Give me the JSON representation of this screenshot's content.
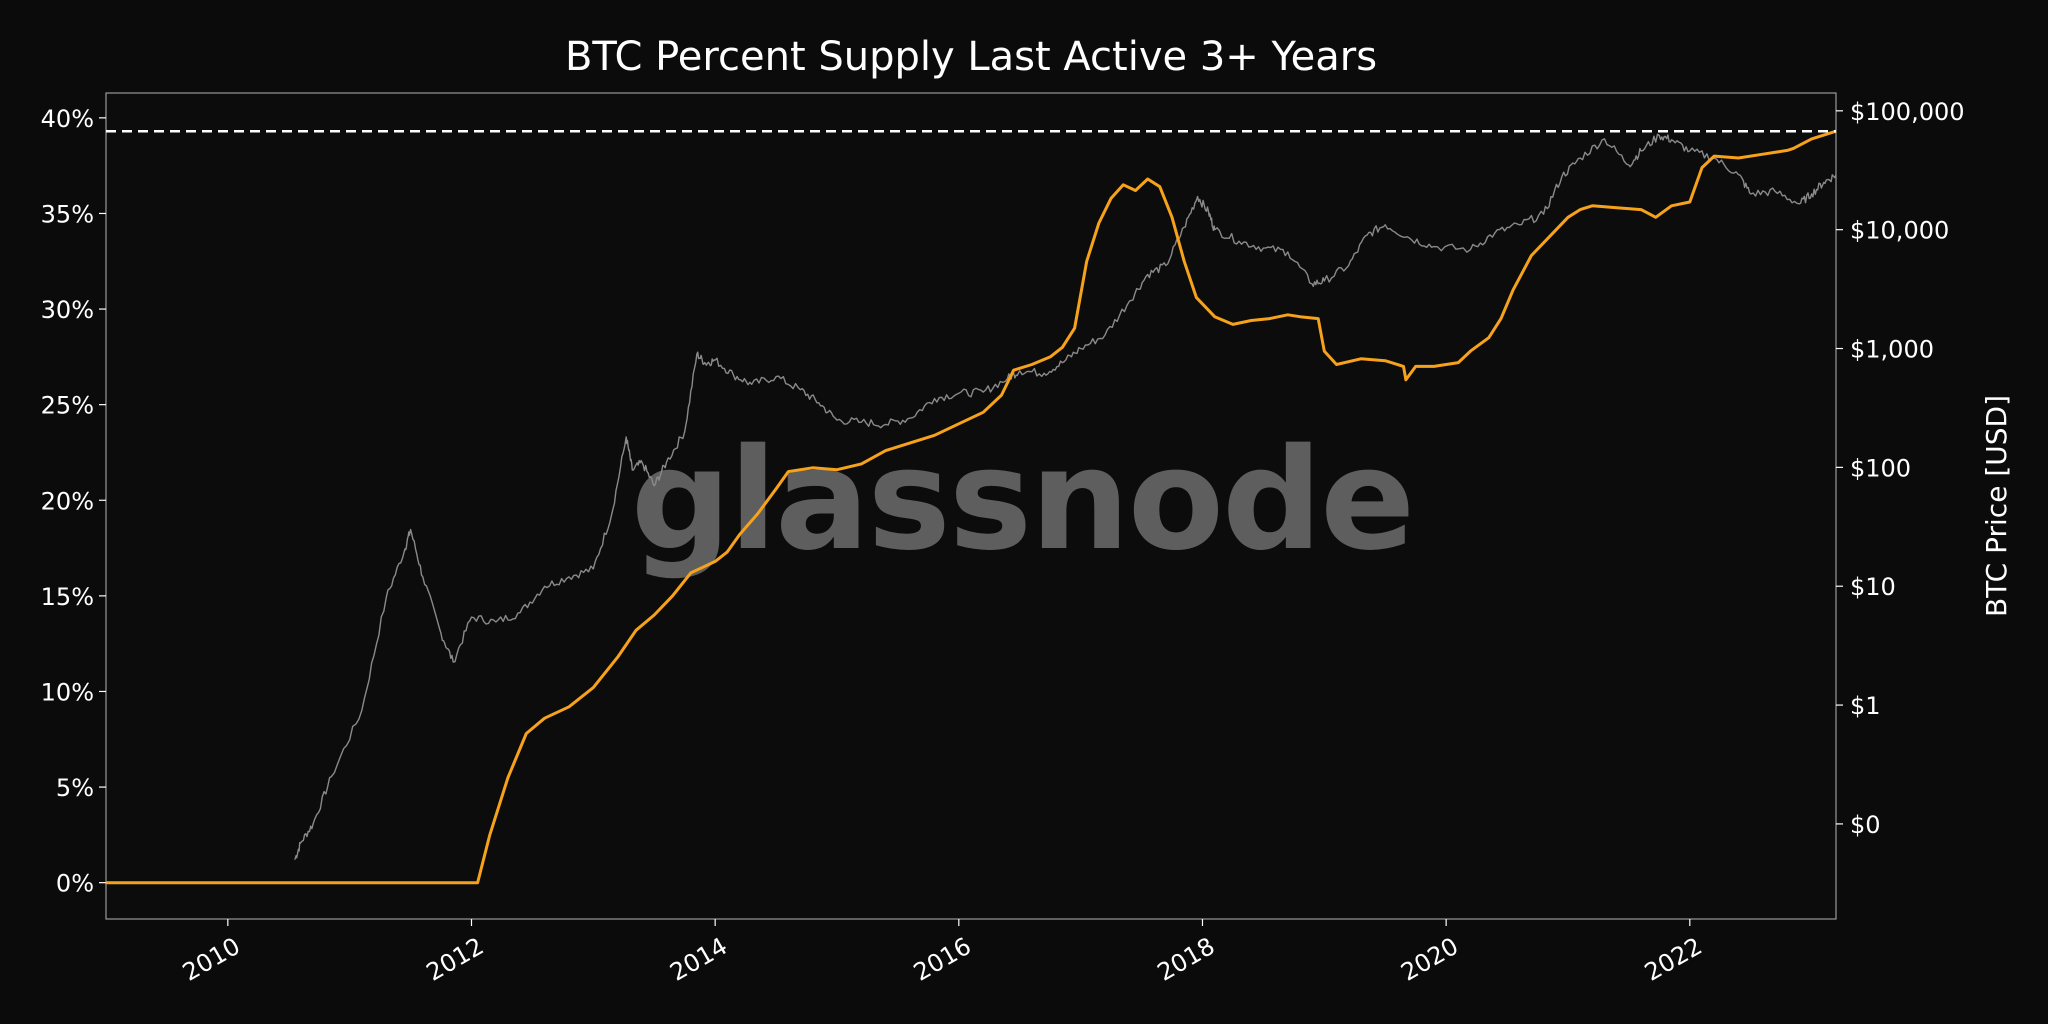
{
  "chart_data": {
    "type": "line",
    "title": "BTC Percent Supply Last Active 3+ Years",
    "xlabel": "",
    "ylabel_left": "",
    "ylabel_right": "BTC Price [USD]",
    "xlim": [
      2009.0,
      2023.2
    ],
    "ylim_left": [
      -1.9,
      41.3
    ],
    "ylim_right_log10": [
      -1.8,
      5.15
    ],
    "x_ticks": [
      2010,
      2012,
      2014,
      2016,
      2018,
      2020,
      2022
    ],
    "x_tick_labels": [
      "2010",
      "2012",
      "2014",
      "2016",
      "2018",
      "2020",
      "2022"
    ],
    "y_left_ticks": [
      0,
      5,
      10,
      15,
      20,
      25,
      30,
      35,
      40
    ],
    "y_left_tick_labels": [
      "0%",
      "5%",
      "10%",
      "15%",
      "20%",
      "25%",
      "30%",
      "35%",
      "40%"
    ],
    "y_right_ticks_log10": [
      -1,
      0,
      1,
      2,
      3,
      4,
      5
    ],
    "y_right_tick_labels": [
      "$0",
      "$1",
      "$10",
      "$100",
      "$1,000",
      "$10,000",
      "$100,000"
    ],
    "ath_line_value": 39.3,
    "watermark": "glassnode",
    "colors": {
      "background": "#0b0b0b",
      "supply": "#f7a21b",
      "price": "#8a8a8a",
      "ath": "#ffffff",
      "watermark": "#5e5e5e",
      "frame": "#9a9a9a"
    },
    "series": [
      {
        "name": "Percent Supply Last Active 3+ Years",
        "axis": "left",
        "x": [
          2009.0,
          2012.0,
          2012.05,
          2012.15,
          2012.3,
          2012.45,
          2012.6,
          2012.8,
          2013.0,
          2013.2,
          2013.35,
          2013.5,
          2013.65,
          2013.8,
          2013.9,
          2014.0,
          2014.1,
          2014.2,
          2014.35,
          2014.5,
          2014.6,
          2014.8,
          2015.0,
          2015.2,
          2015.4,
          2015.6,
          2015.8,
          2016.0,
          2016.2,
          2016.35,
          2016.45,
          2016.6,
          2016.75,
          2016.85,
          2016.95,
          2017.05,
          2017.15,
          2017.25,
          2017.35,
          2017.45,
          2017.55,
          2017.65,
          2017.75,
          2017.85,
          2017.95,
          2018.1,
          2018.25,
          2018.4,
          2018.55,
          2018.7,
          2018.8,
          2018.95,
          2019.0,
          2019.1,
          2019.3,
          2019.5,
          2019.65,
          2019.67,
          2019.75,
          2019.9,
          2020.0,
          2020.1,
          2020.2,
          2020.35,
          2020.45,
          2020.55,
          2020.7,
          2020.85,
          2021.0,
          2021.1,
          2021.2,
          2021.4,
          2021.6,
          2021.72,
          2021.85,
          2022.0,
          2022.1,
          2022.2,
          2022.4,
          2022.6,
          2022.8,
          2022.85,
          2023.0,
          2023.2
        ],
        "values": [
          0,
          0,
          0,
          2.5,
          5.5,
          7.8,
          8.6,
          9.2,
          10.2,
          11.8,
          13.2,
          14.0,
          15.0,
          16.2,
          16.5,
          16.8,
          17.3,
          18.2,
          19.3,
          20.6,
          21.5,
          21.7,
          21.6,
          21.9,
          22.6,
          23.0,
          23.4,
          24.0,
          24.6,
          25.5,
          26.8,
          27.1,
          27.5,
          28.0,
          29.0,
          32.5,
          34.5,
          35.8,
          36.5,
          36.2,
          36.8,
          36.4,
          34.8,
          32.5,
          30.6,
          29.6,
          29.2,
          29.4,
          29.5,
          29.7,
          29.6,
          29.5,
          27.8,
          27.1,
          27.4,
          27.3,
          27.0,
          26.3,
          27.0,
          27.0,
          27.1,
          27.2,
          27.8,
          28.5,
          29.5,
          31.0,
          32.8,
          33.8,
          34.8,
          35.2,
          35.4,
          35.3,
          35.2,
          34.8,
          35.4,
          35.6,
          37.4,
          38.0,
          37.9,
          38.1,
          38.3,
          38.4,
          38.9,
          39.3
        ]
      },
      {
        "name": "BTC Price [USD]",
        "axis": "right",
        "scale": "log10",
        "x": [
          2010.55,
          2010.6,
          2010.7,
          2010.85,
          2011.1,
          2011.3,
          2011.45,
          2011.5,
          2011.6,
          2011.75,
          2011.85,
          2012.0,
          2012.2,
          2012.4,
          2012.6,
          2012.8,
          2013.0,
          2013.15,
          2013.27,
          2013.32,
          2013.4,
          2013.5,
          2013.6,
          2013.75,
          2013.85,
          2013.92,
          2014.0,
          2014.15,
          2014.3,
          2014.5,
          2014.7,
          2014.85,
          2015.0,
          2015.2,
          2015.4,
          2015.6,
          2015.8,
          2016.0,
          2016.2,
          2016.4,
          2016.5,
          2016.7,
          2016.85,
          2017.0,
          2017.2,
          2017.4,
          2017.55,
          2017.7,
          2017.85,
          2017.96,
          2018.05,
          2018.1,
          2018.3,
          2018.5,
          2018.7,
          2018.9,
          2019.0,
          2019.2,
          2019.35,
          2019.5,
          2019.7,
          2019.9,
          2020.2,
          2020.4,
          2020.6,
          2020.8,
          2020.95,
          2021.1,
          2021.3,
          2021.5,
          2021.6,
          2021.75,
          2021.85,
          2022.0,
          2022.2,
          2022.4,
          2022.5,
          2022.7,
          2022.9,
          2023.0,
          2023.1,
          2023.2
        ],
        "values": [
          0.05,
          0.07,
          0.1,
          0.25,
          0.9,
          8,
          20,
          30,
          12,
          4,
          2.3,
          5.5,
          5.0,
          6.0,
          10,
          12,
          14,
          40,
          180,
          95,
          110,
          70,
          110,
          200,
          900,
          750,
          800,
          600,
          500,
          580,
          450,
          350,
          250,
          240,
          230,
          260,
          380,
          420,
          430,
          560,
          650,
          620,
          760,
          1000,
          1300,
          2500,
          4200,
          5000,
          10500,
          19000,
          14000,
          10000,
          8000,
          7000,
          6500,
          3500,
          3700,
          5000,
          9000,
          11000,
          8500,
          7200,
          6800,
          9400,
          11000,
          13500,
          28000,
          40000,
          58000,
          35000,
          46000,
          62000,
          57000,
          46000,
          40000,
          29000,
          20000,
          21000,
          16500,
          20000,
          25000,
          29000
        ]
      }
    ]
  }
}
